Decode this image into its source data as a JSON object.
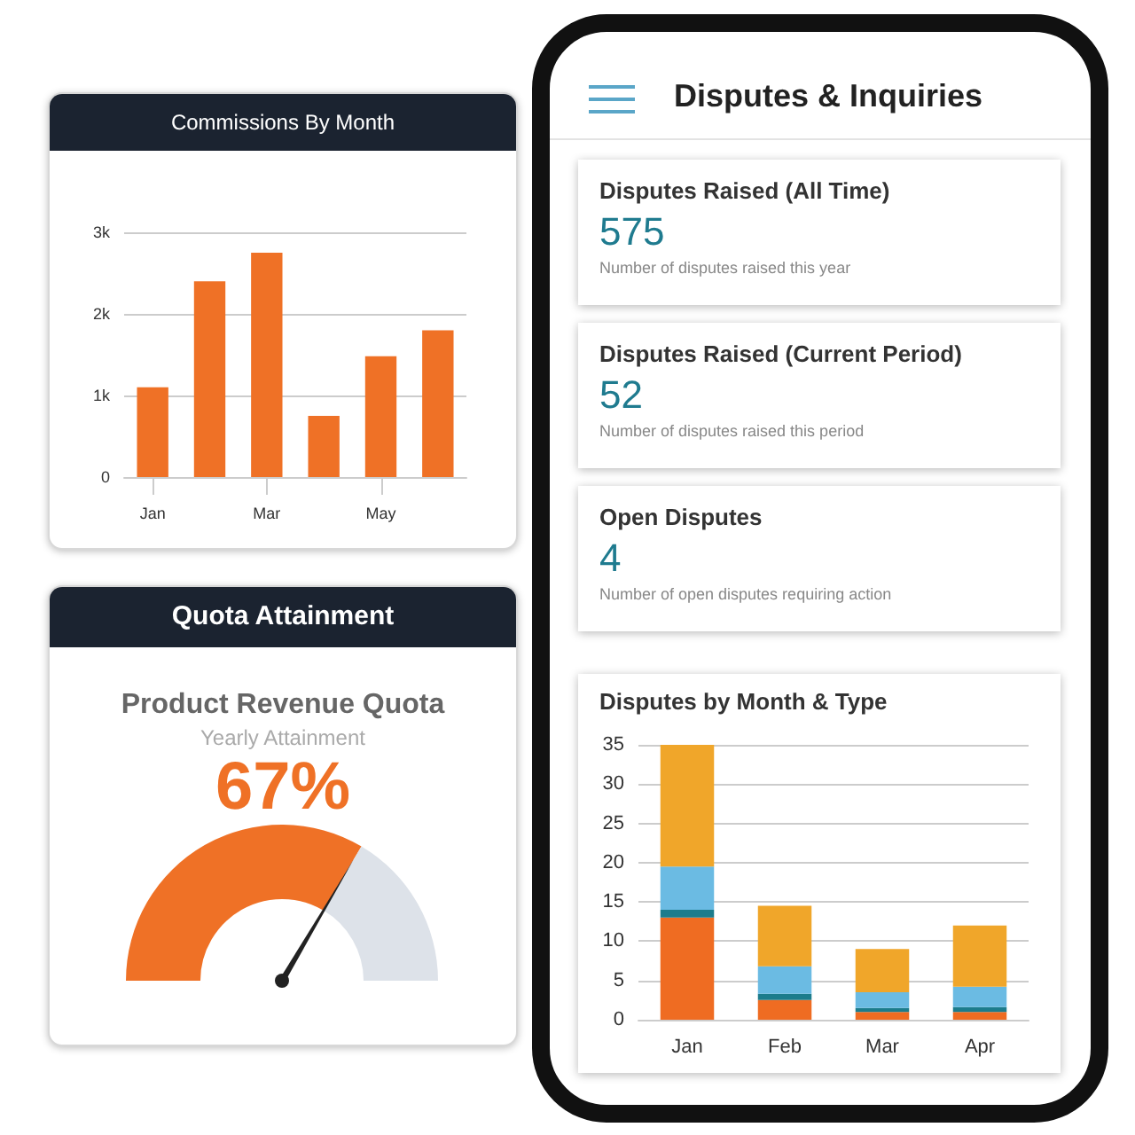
{
  "chart_data": [
    {
      "type": "bar",
      "title": "Commissions By Month",
      "categories": [
        "Jan",
        null,
        "Mar",
        null,
        "May",
        null
      ],
      "values": [
        1100,
        2400,
        2750,
        750,
        1480,
        1800
      ],
      "color": "#ef7126",
      "ylim": [
        0,
        3000
      ],
      "yticks": [
        0,
        {
          "value": 1000,
          "label": "1k"
        },
        {
          "value": 2000,
          "label": "2k"
        },
        {
          "value": 3000,
          "label": "3k"
        }
      ],
      "grid": "y"
    },
    {
      "type": "donut",
      "title": "Quota Attainment",
      "subtitle": "Product Revenue Quota",
      "annotations": [
        "Yearly Attainment",
        "67%"
      ],
      "categories": [
        null,
        null
      ],
      "values": [
        67,
        33
      ],
      "colors": [
        "#ef7126",
        "#dde2e9"
      ]
    },
    {
      "type": "other",
      "title": "Disputes & Inquiries",
      "categories": [
        "Disputes Raised (All Time)",
        "Disputes Raised (Current Period)",
        "Open Disputes"
      ],
      "values": [
        575,
        52,
        4
      ],
      "data_labels": true,
      "annotations": [
        "Number of disputes raised this year",
        "Number of disputes raised this period",
        "Number of open disputes requiring action"
      ]
    },
    {
      "type": "bar",
      "title": "Disputes by Month & Type",
      "categories": [
        "Jan",
        "Feb",
        "Mar",
        "Apr"
      ],
      "stacked": true,
      "series": [
        {
          "color": "#ef6c22",
          "values": [
            13,
            2.5,
            1,
            1
          ]
        },
        {
          "color": "#1c7c8c",
          "values": [
            1,
            0.8,
            0.5,
            0.6
          ]
        },
        {
          "color": "#6bbbe3",
          "values": [
            5.5,
            3.5,
            2,
            2.6
          ]
        },
        {
          "color": "#f0a62a",
          "values": [
            15.5,
            7.7,
            5.5,
            7.8
          ]
        }
      ],
      "ylim": [
        0,
        35
      ],
      "yticks": [
        0,
        5,
        10,
        15,
        20,
        25,
        30,
        35
      ],
      "grid": "y"
    }
  ]
}
